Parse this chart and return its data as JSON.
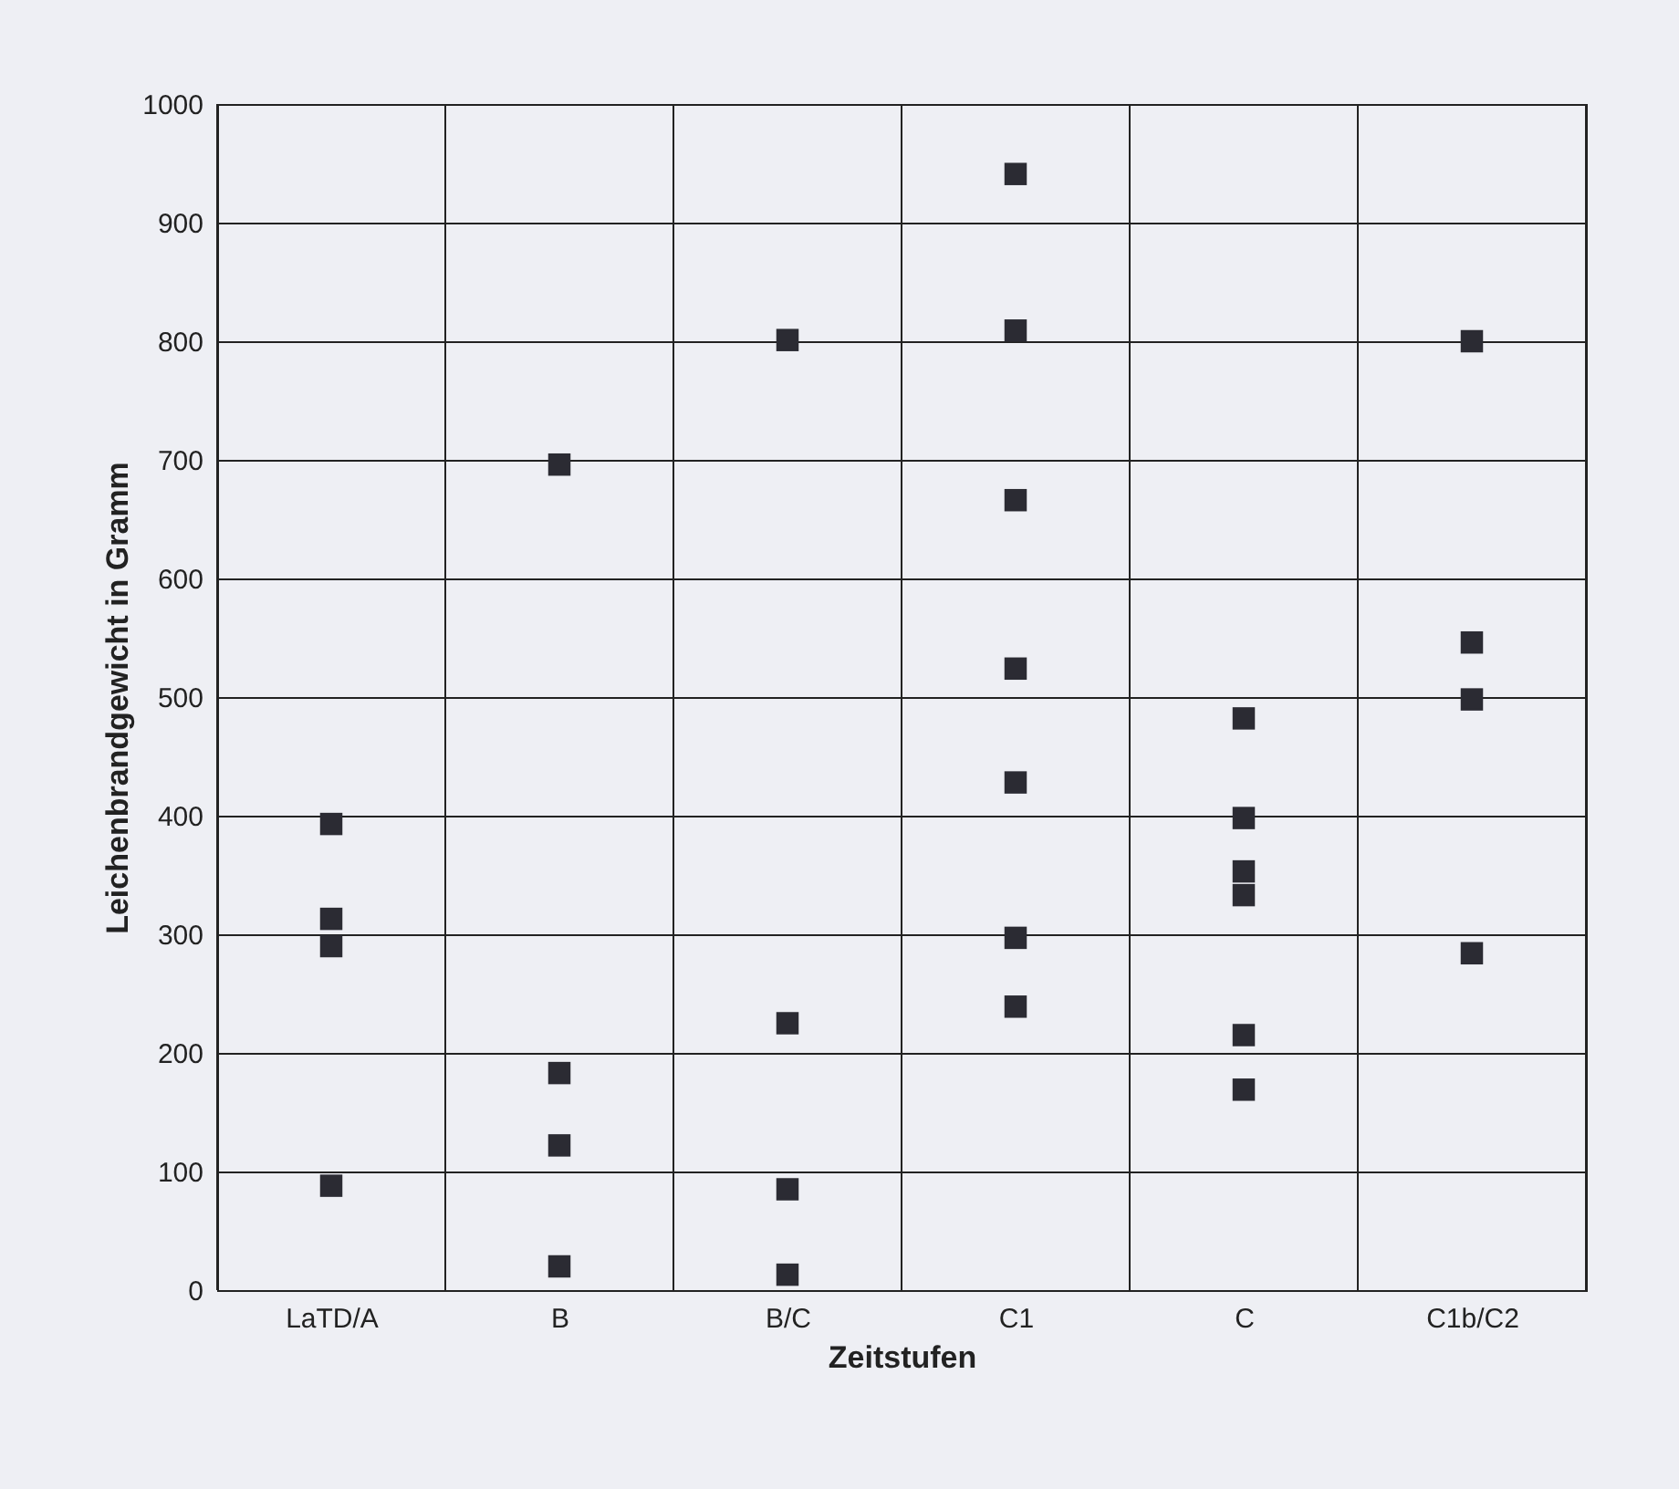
{
  "chart_data": {
    "type": "scatter",
    "xlabel": "Zeitstufen",
    "ylabel": "Leichenbrandgewicht in Gramm",
    "categories": [
      "LaTD/A",
      "B",
      "B/C",
      "C1",
      "C",
      "C1b/C2"
    ],
    "series": [
      {
        "color": "#2b2b33",
        "x": [
          "LaTD/A",
          "LaTD/A",
          "LaTD/A",
          "LaTD/A",
          "B",
          "B",
          "B",
          "B",
          "B/C",
          "B/C",
          "B/C",
          "B/C",
          "C1",
          "C1",
          "C1",
          "C1",
          "C1",
          "C1",
          "C1",
          "C",
          "C",
          "C",
          "C",
          "C",
          "C",
          "C1b/C2",
          "C1b/C2",
          "C1b/C2",
          "C1b/C2"
        ],
        "values": [
          393,
          313,
          290,
          88,
          696,
          183,
          122,
          20,
          801,
          225,
          85,
          13,
          941,
          809,
          666,
          524,
          428,
          297,
          239,
          482,
          398,
          353,
          333,
          215,
          169,
          800,
          546,
          498,
          284
        ]
      }
    ],
    "ylim": [
      0,
      1000
    ],
    "yticks": [
      0,
      100,
      200,
      300,
      400,
      500,
      600,
      700,
      800,
      900,
      1000
    ],
    "grid": true,
    "marker": "square"
  }
}
